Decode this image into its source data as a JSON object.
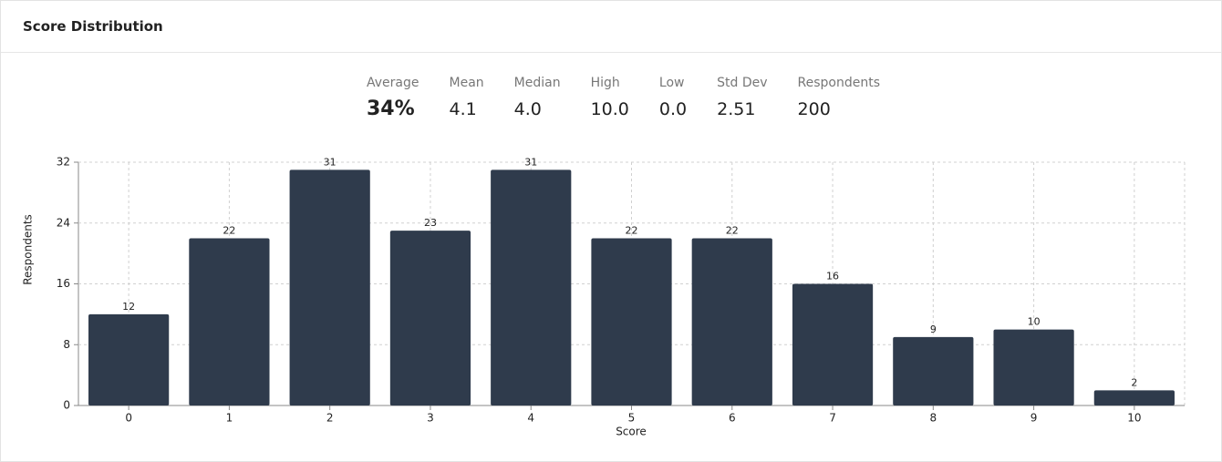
{
  "card": {
    "title": "Score Distribution"
  },
  "stats": [
    {
      "label": "Average",
      "value": "34%"
    },
    {
      "label": "Mean",
      "value": "4.1"
    },
    {
      "label": "Median",
      "value": "4.0"
    },
    {
      "label": "High",
      "value": "10.0"
    },
    {
      "label": "Low",
      "value": "0.0"
    },
    {
      "label": "Std Dev",
      "value": "2.51"
    },
    {
      "label": "Respondents",
      "value": "200"
    }
  ],
  "chart_data": {
    "type": "bar",
    "x_label": "Score",
    "y_label": "Respondents",
    "categories": [
      "0",
      "1",
      "2",
      "3",
      "4",
      "5",
      "6",
      "7",
      "8",
      "9",
      "10"
    ],
    "values": [
      12,
      22,
      31,
      23,
      31,
      22,
      22,
      16,
      9,
      10,
      2
    ],
    "color": "#2f3b4c",
    "ylim": [
      0,
      32
    ],
    "yticks": [
      0,
      8,
      16,
      24,
      32
    ],
    "grid": true
  }
}
